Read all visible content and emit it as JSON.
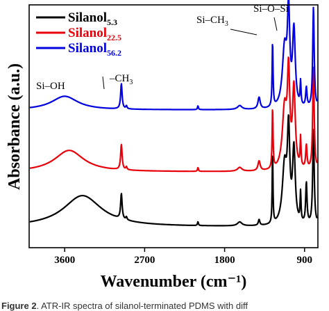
{
  "chart_data": {
    "type": "line",
    "title": "",
    "xlabel": "Wavenumber (cm⁻¹)",
    "ylabel": "Absorbance (a.u.)",
    "x_reversed": true,
    "xlim": [
      4000,
      750
    ],
    "x_ticks": [
      3600,
      2700,
      1800,
      900
    ],
    "y_ticks_shown": false,
    "legend_position": "top-left",
    "series": [
      {
        "name_main": "Silanol",
        "name_sub": "5.3",
        "color": "#000000",
        "offset": 0,
        "peaks": [
          [
            3400,
            0.16,
            260
          ],
          [
            2962,
            0.13,
            10
          ],
          [
            2905,
            0.015,
            8
          ],
          [
            2100,
            0.02,
            6
          ],
          [
            1630,
            0.02,
            30
          ],
          [
            1412,
            0.03,
            10
          ],
          [
            1260,
            0.38,
            5
          ],
          [
            1125,
            0.3,
            30
          ],
          [
            1080,
            0.45,
            16
          ],
          [
            1020,
            0.38,
            18
          ],
          [
            945,
            0.15,
            6
          ],
          [
            880,
            0.21,
            9
          ],
          [
            800,
            0.49,
            10
          ],
          [
            745,
            0.04,
            8
          ]
        ]
      },
      {
        "name_main": "Silanol",
        "name_sub": "22.5",
        "color": "#e8000b",
        "offset": 1,
        "peaks": [
          [
            3550,
            0.11,
            200
          ],
          [
            2962,
            0.13,
            10
          ],
          [
            2905,
            0.015,
            8
          ],
          [
            2100,
            0.02,
            6
          ],
          [
            1630,
            0.02,
            30
          ],
          [
            1412,
            0.05,
            15
          ],
          [
            1260,
            0.32,
            6
          ],
          [
            1125,
            0.31,
            30
          ],
          [
            1080,
            0.46,
            16
          ],
          [
            1020,
            0.41,
            18
          ],
          [
            945,
            0.15,
            6
          ],
          [
            880,
            0.12,
            9
          ],
          [
            800,
            0.53,
            10
          ],
          [
            745,
            0.04,
            8
          ]
        ]
      },
      {
        "name_main": "Silanol",
        "name_sub": "56.2",
        "color": "#0000e0",
        "offset": 2,
        "peaks": [
          [
            3600,
            0.07,
            180
          ],
          [
            2962,
            0.13,
            10
          ],
          [
            2905,
            0.015,
            8
          ],
          [
            2100,
            0.02,
            6
          ],
          [
            1630,
            0.02,
            30
          ],
          [
            1412,
            0.06,
            15
          ],
          [
            1260,
            0.34,
            6
          ],
          [
            1125,
            0.3,
            30
          ],
          [
            1080,
            0.46,
            16
          ],
          [
            1020,
            0.39,
            18
          ],
          [
            945,
            0.12,
            6
          ],
          [
            880,
            0.1,
            9
          ],
          [
            800,
            0.52,
            10
          ],
          [
            745,
            0.04,
            8
          ]
        ]
      }
    ],
    "annotations": [
      {
        "main": "Si–OH",
        "sub": ""
      },
      {
        "main": "–CH",
        "sub": "3"
      },
      {
        "main": "Si–CH",
        "sub": "3"
      },
      {
        "main": "Si–O–Si",
        "sub": ""
      }
    ]
  },
  "caption": {
    "bold": "Figure 2",
    "text": ". ATR-IR spectra of silanol-terminated PDMS with diff"
  }
}
